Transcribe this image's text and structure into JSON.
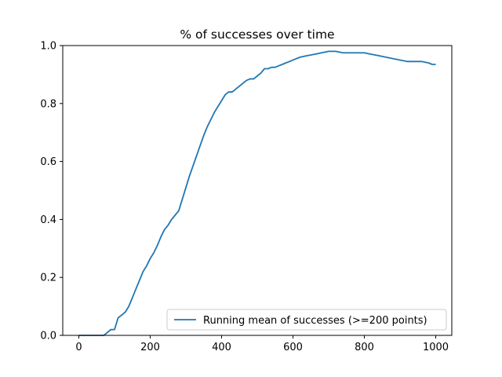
{
  "chart_data": {
    "type": "line",
    "title": "% of successes over time",
    "xlabel": "",
    "ylabel": "",
    "xlim": [
      -45,
      1045
    ],
    "ylim": [
      0,
      1.0
    ],
    "xticks": [
      0,
      200,
      400,
      600,
      800,
      1000
    ],
    "xtick_labels": [
      "0",
      "200",
      "400",
      "600",
      "800",
      "1000"
    ],
    "yticks": [
      0.0,
      0.2,
      0.4,
      0.6,
      0.8,
      1.0
    ],
    "ytick_labels": [
      "0.0",
      "0.2",
      "0.4",
      "0.6",
      "0.8",
      "1.0"
    ],
    "grid": false,
    "legend_position": "lower right",
    "series": [
      {
        "name": "Running mean of successes (>=200 points)",
        "color": "#1f77b4",
        "x": [
          0,
          20,
          40,
          60,
          70,
          75,
          80,
          90,
          100,
          105,
          110,
          120,
          130,
          140,
          150,
          160,
          170,
          180,
          190,
          200,
          210,
          220,
          230,
          240,
          250,
          260,
          270,
          280,
          290,
          300,
          310,
          320,
          330,
          340,
          350,
          360,
          370,
          380,
          390,
          400,
          410,
          420,
          430,
          440,
          450,
          460,
          470,
          480,
          490,
          500,
          510,
          520,
          530,
          540,
          550,
          560,
          570,
          580,
          590,
          600,
          620,
          640,
          660,
          680,
          700,
          720,
          740,
          760,
          780,
          800,
          820,
          840,
          860,
          880,
          900,
          920,
          940,
          960,
          980,
          990,
          995,
          1000
        ],
        "values": [
          0.0,
          0.0,
          0.0,
          0.0,
          0.0,
          0.005,
          0.01,
          0.02,
          0.02,
          0.04,
          0.06,
          0.07,
          0.08,
          0.1,
          0.13,
          0.16,
          0.19,
          0.22,
          0.24,
          0.265,
          0.285,
          0.31,
          0.34,
          0.365,
          0.38,
          0.4,
          0.415,
          0.43,
          0.47,
          0.51,
          0.55,
          0.585,
          0.62,
          0.655,
          0.69,
          0.72,
          0.745,
          0.77,
          0.79,
          0.81,
          0.83,
          0.84,
          0.84,
          0.85,
          0.86,
          0.87,
          0.88,
          0.885,
          0.885,
          0.895,
          0.905,
          0.92,
          0.92,
          0.925,
          0.925,
          0.93,
          0.935,
          0.94,
          0.945,
          0.95,
          0.96,
          0.965,
          0.97,
          0.975,
          0.98,
          0.98,
          0.975,
          0.975,
          0.975,
          0.975,
          0.97,
          0.965,
          0.96,
          0.955,
          0.95,
          0.945,
          0.945,
          0.945,
          0.94,
          0.935,
          0.935,
          0.935
        ]
      }
    ]
  }
}
